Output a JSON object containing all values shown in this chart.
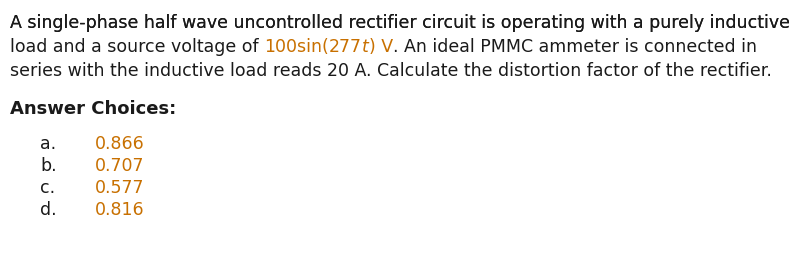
{
  "background_color": "#ffffff",
  "line1": "A single-phase half wave uncontrolled rectifier circuit is operating with a purely inductive",
  "line2_black1": "load and a source voltage of ",
  "line2_orange1": "100sin(",
  "line2_orange2": "277",
  "line2_orange3_italic": "t",
  "line2_orange4": ") V",
  "line2_black2": ". An ideal PMMC ammeter is connected in",
  "line3_black1": "series with the inductive load reads ",
  "line3_black2": "20 A",
  "line3_black3": ". Calculate the distortion factor of the rectifier.",
  "answer_header": "Answer Choices:",
  "choices": [
    {
      "label": "a.   ",
      "value": "0.866"
    },
    {
      "label": "b.   ",
      "value": "0.707"
    },
    {
      "label": "c.   ",
      "value": "0.577"
    },
    {
      "label": "d.   ",
      "value": "0.816"
    }
  ],
  "orange_color": "#c87000",
  "black_color": "#1a1a1a",
  "font_size": 12.5,
  "header_font_size": 13.0,
  "choice_font_size": 12.5
}
